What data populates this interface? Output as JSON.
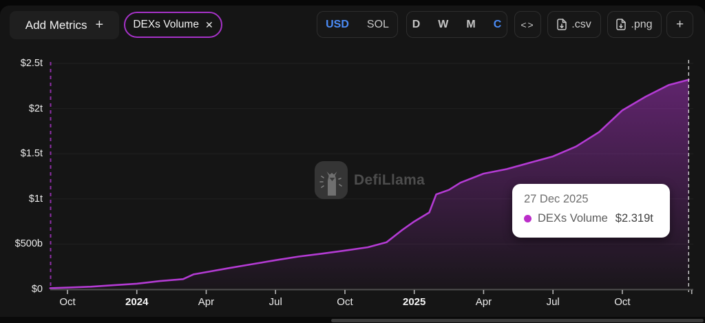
{
  "header": {
    "add_metrics_label": "Add Metrics",
    "add_metrics_plus": "+",
    "metric_pill": {
      "label": "DEXs Volume",
      "close": "✕"
    },
    "currency_toggle": {
      "options": [
        "USD",
        "SOL"
      ],
      "selected": "USD"
    },
    "interval_toggle": {
      "options": [
        "D",
        "W",
        "M",
        "C"
      ],
      "selected": "C"
    },
    "embed_label": "<>",
    "csv_label": ".csv",
    "png_label": ".png",
    "more_label": "+",
    "accent_blue": "#4b8cf7",
    "accent_purple": "#a632c8"
  },
  "watermark": {
    "text": "DefiLlama"
  },
  "tooltip": {
    "date": "27 Dec 2025",
    "series": "DEXs Volume",
    "value": "$2.319t",
    "dot_color": "#bb2dc9"
  },
  "chart_data": {
    "type": "area",
    "title": "DEXs Volume, cumulative, USD",
    "xlabel": "",
    "ylabel": "",
    "ylim": [
      0,
      2.5
    ],
    "grid": "horizontal",
    "legend_position": "none",
    "line_color": "#b43bd4",
    "area_top_color": "rgba(168,51,194,0.55)",
    "area_bottom_color": "rgba(168,51,194,0.03)",
    "axis_dash_color": "#8f2fa8",
    "crosshair_color": "#cfcfcf",
    "y_ticks": [
      {
        "v": 0,
        "label": "$0"
      },
      {
        "v": 0.5,
        "label": "$500b"
      },
      {
        "v": 1,
        "label": "$1t"
      },
      {
        "v": 1.5,
        "label": "$1.5t"
      },
      {
        "v": 2,
        "label": "$2t"
      },
      {
        "v": 2.5,
        "label": "$2.5t"
      }
    ],
    "x_ticks": [
      {
        "m": 0,
        "label": "Oct",
        "year": false
      },
      {
        "m": 3,
        "label": "2024",
        "year": true
      },
      {
        "m": 6,
        "label": "Apr",
        "year": false
      },
      {
        "m": 9,
        "label": "Jul",
        "year": false
      },
      {
        "m": 12,
        "label": "Oct",
        "year": false
      },
      {
        "m": 15,
        "label": "2025",
        "year": true
      },
      {
        "m": 18,
        "label": "Apr",
        "year": false
      },
      {
        "m": 21,
        "label": "Jul",
        "year": false
      },
      {
        "m": 24,
        "label": "Oct",
        "year": false
      },
      {
        "m": 27,
        "label": "",
        "year": false
      }
    ],
    "series": [
      {
        "name": "DEXs Volume",
        "unit": "$t",
        "points_months_from_oct2023_vs_trillions": [
          [
            -0.75,
            0.012
          ],
          [
            0,
            0.018
          ],
          [
            1,
            0.028
          ],
          [
            2,
            0.045
          ],
          [
            3,
            0.062
          ],
          [
            4,
            0.091
          ],
          [
            5,
            0.112
          ],
          [
            5.45,
            0.165
          ],
          [
            6,
            0.19
          ],
          [
            7,
            0.235
          ],
          [
            8,
            0.278
          ],
          [
            9,
            0.322
          ],
          [
            10,
            0.362
          ],
          [
            11,
            0.394
          ],
          [
            12,
            0.428
          ],
          [
            13,
            0.465
          ],
          [
            13.8,
            0.52
          ],
          [
            14.5,
            0.66
          ],
          [
            15,
            0.75
          ],
          [
            15.65,
            0.85
          ],
          [
            15.95,
            1.05
          ],
          [
            16.5,
            1.1
          ],
          [
            17,
            1.18
          ],
          [
            18,
            1.28
          ],
          [
            19,
            1.33
          ],
          [
            20,
            1.4
          ],
          [
            21,
            1.47
          ],
          [
            22,
            1.58
          ],
          [
            23,
            1.74
          ],
          [
            24,
            1.98
          ],
          [
            25,
            2.13
          ],
          [
            26,
            2.26
          ],
          [
            26.87,
            2.319
          ]
        ]
      }
    ],
    "highlight": {
      "m": 26.87,
      "date": "27 Dec 2025",
      "value_trillions": 2.319,
      "value_label": "$2.319t"
    }
  }
}
